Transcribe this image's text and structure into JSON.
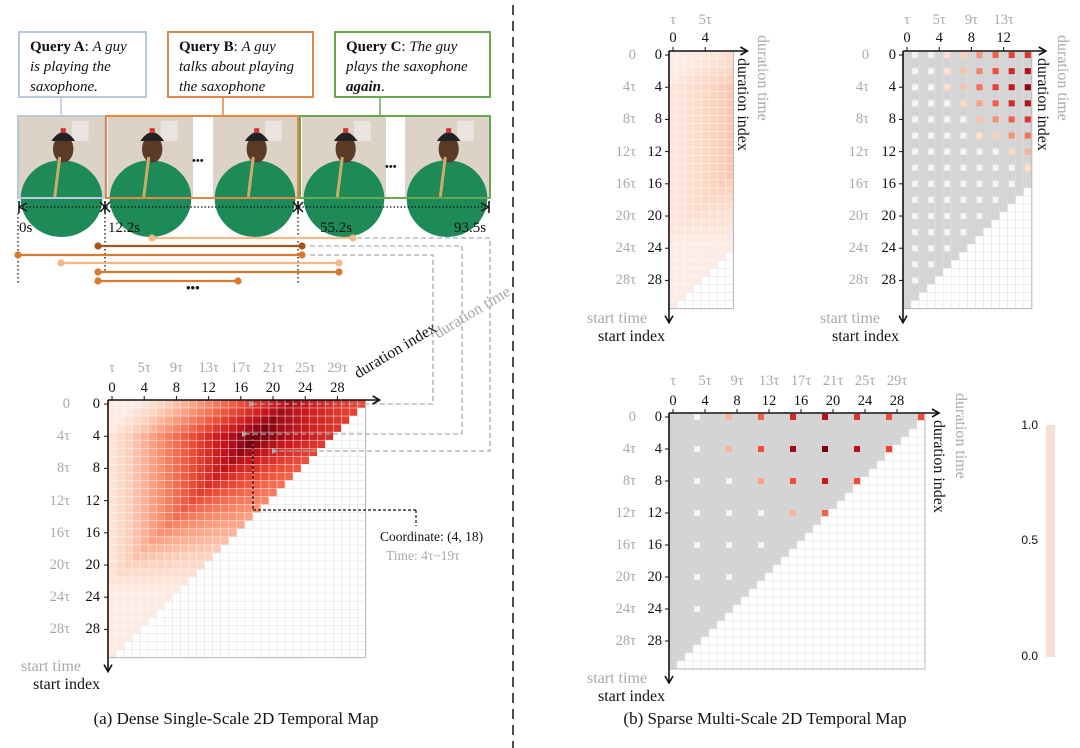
{
  "queries": [
    {
      "label": "Query A",
      "sep": ": ",
      "text": "A guy is playing the saxophone.",
      "emph": "",
      "tail": "",
      "color": "#b9c9dc"
    },
    {
      "label": "Query B",
      "sep": ": ",
      "text": "A guy talks about playing the saxophone",
      "emph": "",
      "tail": "",
      "color": "#e0894a"
    },
    {
      "label": "Query C",
      "sep": ": ",
      "text": "The guy plays the saxophone ",
      "emph": "again",
      "tail": ".",
      "color": "#6aa84f"
    }
  ],
  "timeline": {
    "labels": [
      "0s",
      "12.2s",
      "55.2s",
      "93.5s"
    ]
  },
  "ellipsis": "•••",
  "segment_colors": {
    "light": "#f3b88a",
    "medium": "#d67a30",
    "dark": "#a0561e"
  },
  "axis_titles": {
    "duration_time": "duration time",
    "duration_index": "duration index",
    "start_time": "start time",
    "start_index": "start index"
  },
  "panel_a": {
    "caption": "(a) Dense Single-Scale 2D Temporal Map",
    "time_ticks": [
      "τ",
      "5τ",
      "9τ",
      "13τ",
      "17τ",
      "21τ",
      "25τ",
      "29τ"
    ],
    "index_ticks": [
      "0",
      "4",
      "8",
      "12",
      "16",
      "20",
      "24",
      "28"
    ],
    "row_time_ticks": [
      "0",
      "4τ",
      "8τ",
      "12τ",
      "16τ",
      "20τ",
      "24τ",
      "28τ"
    ],
    "row_index_ticks": [
      "0",
      "4",
      "8",
      "12",
      "16",
      "20",
      "24",
      "28"
    ],
    "annotation": {
      "coordinate": "Coordinate: (4, 18)",
      "time": "Time: 4τ~19τ"
    }
  },
  "panel_b": {
    "caption": "(b) Sparse Multi-Scale 2D Temporal Map",
    "map_small": {
      "time_ticks": [
        "τ",
        "5τ"
      ],
      "index_ticks": [
        "0",
        "4"
      ],
      "row_time_ticks": [
        "0",
        "4τ",
        "8τ",
        "12τ",
        "16τ",
        "20τ",
        "24τ",
        "28τ"
      ],
      "row_index_ticks": [
        "0",
        "4",
        "8",
        "12",
        "16",
        "20",
        "24",
        "28"
      ]
    },
    "map_medium": {
      "time_ticks": [
        "τ",
        "5τ",
        "9τ",
        "13τ"
      ],
      "index_ticks": [
        "0",
        "4",
        "8",
        "12"
      ],
      "row_time_ticks": [
        "0",
        "4τ",
        "8τ",
        "12τ",
        "16τ",
        "20τ",
        "24τ",
        "28τ"
      ],
      "row_index_ticks": [
        "0",
        "4",
        "8",
        "12",
        "16",
        "20",
        "24",
        "28"
      ],
      "sample_values": [
        [
          0.02,
          0.02,
          0.1,
          0.2,
          0.4,
          0.55,
          0.65,
          0.7
        ],
        [
          0.02,
          0.02,
          0.1,
          0.25,
          0.45,
          0.6,
          0.75,
          0.85
        ],
        [
          0.02,
          0.02,
          0.12,
          0.25,
          0.5,
          0.65,
          0.8,
          0.95
        ],
        [
          0.02,
          0.02,
          0.05,
          0.15,
          0.35,
          0.55,
          0.75,
          0.85
        ],
        [
          0.02,
          0.02,
          0.02,
          0.05,
          0.25,
          0.4,
          0.55,
          0.7
        ],
        [
          0.02,
          0.02,
          0.02,
          0.02,
          0.1,
          0.2,
          0.4,
          0.5
        ],
        [
          0.02,
          0.02,
          0.02,
          0.02,
          0.02,
          0.05,
          0.15,
          0.3
        ],
        [
          0.02,
          0.02,
          0.02,
          0.02,
          0.02,
          0.02,
          0.02,
          0.1
        ],
        [
          0.02,
          0.02,
          0.02,
          0.02,
          0.02,
          0.02,
          0.02
        ],
        [
          0.02,
          0.02,
          0.02,
          0.02,
          0.02,
          0.02
        ],
        [
          0.02,
          0.02,
          0.02,
          0.02,
          0.02
        ],
        [
          0.02,
          0.02,
          0.02,
          0.02
        ],
        [
          0.02,
          0.02,
          0.02
        ],
        [
          0.02,
          0.02
        ],
        [
          0.02
        ],
        []
      ]
    },
    "map_large": {
      "time_ticks": [
        "τ",
        "5τ",
        "9τ",
        "13τ",
        "17τ",
        "21τ",
        "25τ",
        "29τ"
      ],
      "index_ticks": [
        "0",
        "4",
        "8",
        "12",
        "16",
        "20",
        "24",
        "28"
      ],
      "row_time_ticks": [
        "0",
        "4τ",
        "8τ",
        "12τ",
        "16τ",
        "20τ",
        "24τ",
        "28τ"
      ],
      "row_index_ticks": [
        "0",
        "4",
        "8",
        "12",
        "16",
        "20",
        "24",
        "28"
      ],
      "sample_values": [
        [
          0.05,
          0.3,
          0.55,
          0.75,
          0.85,
          0.7,
          0.6,
          0.6
        ],
        [
          0.05,
          0.3,
          0.6,
          0.9,
          1.0,
          0.85,
          0.65
        ],
        [
          0.05,
          0.05,
          0.35,
          0.6,
          0.8,
          0.6
        ],
        [
          0.05,
          0.05,
          0.05,
          0.3,
          0.55
        ],
        [
          0.05,
          0.05,
          0.05
        ],
        [
          0.05,
          0.05
        ],
        [
          0.05
        ],
        []
      ]
    },
    "colorbar": {
      "ticks": [
        "1.0",
        "0.5",
        "0.0"
      ],
      "color": "#f6e0d6"
    }
  },
  "chart_data": {
    "type": "heatmap",
    "ground_truth_coordinate": [
      4,
      18
    ],
    "color_range": [
      0.0,
      1.0
    ],
    "colors": {
      "low": "#fdf1ec",
      "high": "#7a0010",
      "invalid_sparse": "#d4d4d4"
    }
  }
}
